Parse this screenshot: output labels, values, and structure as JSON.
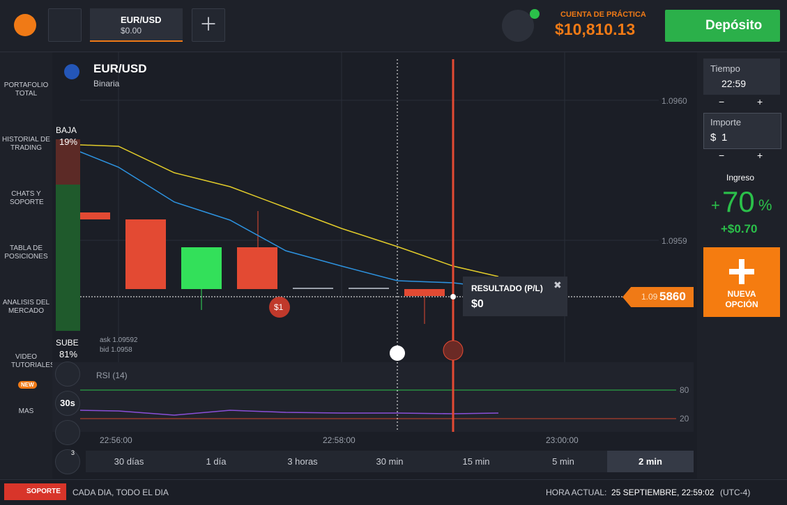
{
  "top_bar": {
    "asset": "EUR/USD",
    "asset_value": "$0.00",
    "account_label": "CUENTA DE PRÁCTICA",
    "balance": "$10,810.13",
    "deposit": "Depósito"
  },
  "sidebar": {
    "items": [
      "PORTAFOLIO TOTAL",
      "HISTORIAL DE TRADING",
      "CHATS Y SOPORTE",
      "TABLA DE POSICIONES",
      "ANALISIS DEL MERCADO",
      "VIDEO TUTORIALES",
      "MAS"
    ],
    "new_badge": "NEW"
  },
  "chart": {
    "asset": "EUR/USD",
    "asset_type": "Binaria",
    "down_label": "BAJA",
    "down_pct": "19%",
    "up_label": "SUBE",
    "up_pct": "81%",
    "ask": "ask 1.09592",
    "bid": "bid 1.0958",
    "price_levels": [
      "1.0960",
      "1.0959"
    ],
    "current_price_prefix": "1.09",
    "current_price_suffix": "5860",
    "trade_marker": "$1",
    "result_title": "RESULTADO (P/L)",
    "result_value": "$0",
    "indicator": "RSI (14)",
    "rsi_levels": [
      "80",
      "20"
    ],
    "time_labels": [
      "22:56:00",
      "22:58:00",
      "23:00:00"
    ],
    "tool_interval": "30s",
    "tool_count": "3"
  },
  "timeframes": {
    "items": [
      "30 días",
      "1 día",
      "3 horas",
      "30 min",
      "15 min",
      "5 min",
      "2 min"
    ],
    "selected": "2 min"
  },
  "right_panel": {
    "time_label": "Tiempo",
    "time_value": "22:59",
    "amount_label": "Importe",
    "currency": "$",
    "amount_value": "1",
    "minus": "−",
    "plus": "+",
    "income_label": "Ingreso",
    "income_sign": "+",
    "income_pct": "70",
    "pct_sign": "%",
    "income_value": "+$0.70",
    "new_option": "NUEVA OPCIÓN"
  },
  "footer": {
    "support": "SOPORTE",
    "support_hours": "CADA DIA, TODO EL DIA",
    "time_label": "HORA ACTUAL:",
    "time_value": "25 SEPTIEMBRE, 22:59:02",
    "timezone": "(UTC-4)"
  }
}
